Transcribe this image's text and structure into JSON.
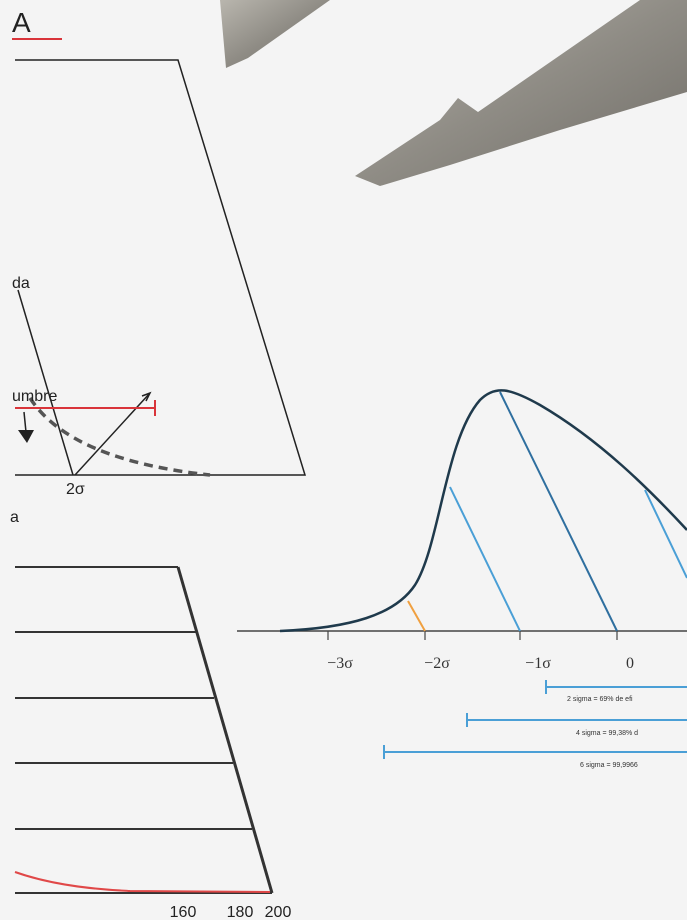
{
  "header": {
    "title": "A"
  },
  "top_chart": {
    "labels": [
      "da",
      "umbre",
      "2σ"
    ]
  },
  "caption": "a",
  "bottom_chart": {
    "x_tick_labels": [
      "160",
      "180",
      "200"
    ]
  },
  "normal_curve": {
    "x_tick_labels": [
      "−3σ",
      "−2σ",
      "−1σ",
      "0"
    ],
    "ranges": [
      "2 sigma = 69% de efi",
      "4 sigma = 99,38% d",
      "6 sigma = 99,9966"
    ]
  }
}
